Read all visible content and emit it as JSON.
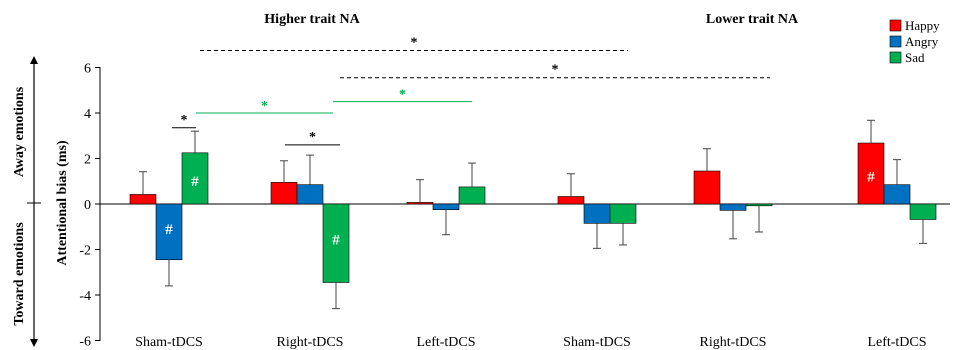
{
  "chart_data": {
    "type": "bar",
    "ylabel": "Attentional bias (ms)",
    "ylim": [
      -6,
      6
    ],
    "yticks": [
      "6",
      "4",
      "2",
      "0",
      "-2",
      "-4",
      "-6"
    ],
    "side_labels": {
      "top": "Away emotions",
      "bottom": "Toward emotions"
    },
    "legend_placement": "top-right",
    "colors": {
      "Happy": "#ff0000",
      "Angry": "#0070c0",
      "Sad": "#00b050"
    },
    "panels": [
      {
        "title": "Higher trait NA",
        "categories": [
          "Sham-tDCS",
          "Right-tDCS",
          "Left-tDCS"
        ],
        "series": [
          {
            "name": "Happy",
            "values": [
              0.42,
              0.95,
              0.07
            ],
            "errors": [
              1.0,
              0.95,
              1.0
            ]
          },
          {
            "name": "Angry",
            "values": [
              -2.45,
              0.85,
              -0.25
            ],
            "errors": [
              1.15,
              1.3,
              1.1
            ]
          },
          {
            "name": "Sad",
            "values": [
              2.25,
              -3.45,
              0.75
            ],
            "errors": [
              0.95,
              1.15,
              1.05
            ]
          }
        ],
        "hash_marks": [
          {
            "series": "Angry",
            "category": "Sham-tDCS",
            "text": "#"
          },
          {
            "series": "Sad",
            "category": "Sham-tDCS",
            "text": "#"
          },
          {
            "series": "Sad",
            "category": "Right-tDCS",
            "text": "#"
          }
        ]
      },
      {
        "title": "Lower trait NA",
        "categories": [
          "Sham-tDCS",
          "Right-tDCS",
          "Left-tDCS"
        ],
        "series": [
          {
            "name": "Happy",
            "values": [
              0.33,
              1.45,
              2.68
            ],
            "errors": [
              1.0,
              0.98,
              1.0
            ]
          },
          {
            "name": "Angry",
            "values": [
              -0.85,
              -0.28,
              0.85
            ],
            "errors": [
              1.1,
              1.25,
              1.1
            ]
          },
          {
            "name": "Sad",
            "values": [
              -0.85,
              -0.08,
              -0.68
            ],
            "errors": [
              0.95,
              1.15,
              1.05
            ]
          }
        ],
        "hash_marks": [
          {
            "series": "Happy",
            "category": "Left-tDCS",
            "text": "#"
          }
        ]
      }
    ],
    "annotations": [
      {
        "label": "*",
        "style": "dashed",
        "color": "#000000",
        "y": 6.75,
        "from": "Higher trait NA / Sham-tDCS",
        "to": "Lower trait NA / Sham-tDCS"
      },
      {
        "label": "*",
        "style": "dashed",
        "color": "#000000",
        "y": 5.55,
        "from": "Higher trait NA / Right-tDCS",
        "to": "Lower trait NA / Right-tDCS"
      },
      {
        "label": "*",
        "style": "solid",
        "color": "#00b050",
        "y": 4.0,
        "from": "Higher trait NA / Sham-tDCS Sad",
        "to": "Higher trait NA / Right-tDCS Sad"
      },
      {
        "label": "*",
        "style": "solid",
        "color": "#00b050",
        "y": 4.5,
        "from": "Higher trait NA / Right-tDCS Sad",
        "to": "Higher trait NA / Left-tDCS Sad"
      },
      {
        "label": "*",
        "style": "bracket",
        "color": "#000000",
        "y": 3.35,
        "from": "Higher trait NA / Sham-tDCS Angry",
        "to": "Higher trait NA / Sham-tDCS Sad"
      },
      {
        "label": "*",
        "style": "bracket",
        "color": "#000000",
        "y": 2.6,
        "from": "Higher trait NA / Right-tDCS Happy",
        "to": "Higher trait NA / Right-tDCS Sad"
      }
    ]
  }
}
